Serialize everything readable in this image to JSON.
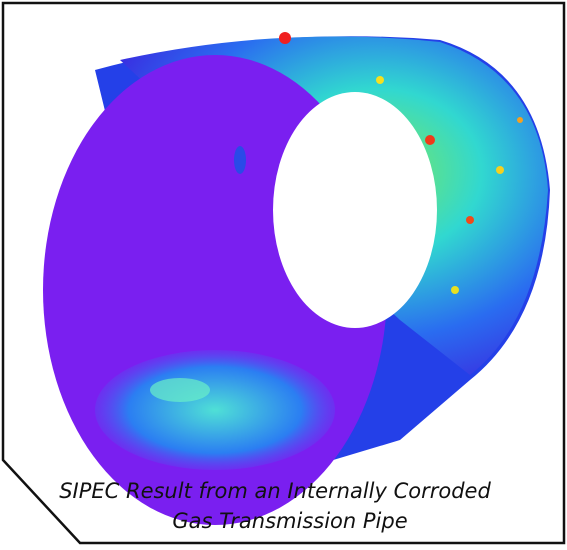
{
  "caption": {
    "lines": [
      "SIPEC Result from an Internally Corroded",
      "Gas Transmission Pipe"
    ]
  }
}
